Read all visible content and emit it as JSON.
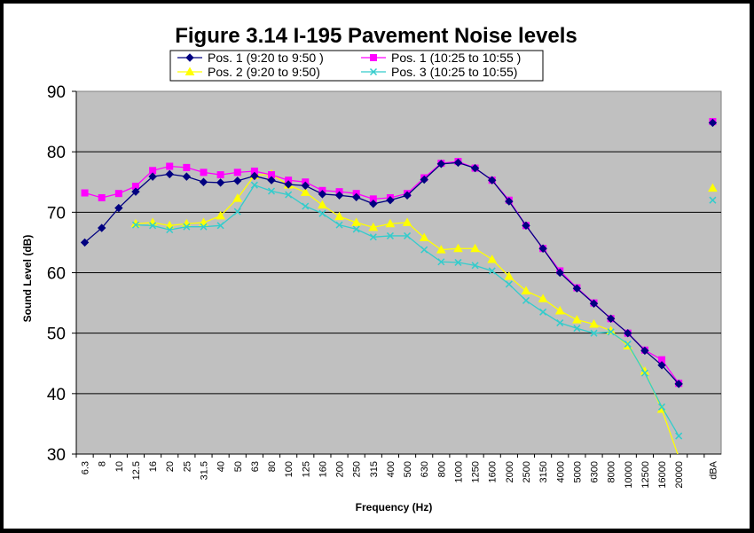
{
  "chart_data": {
    "type": "line",
    "title": "Figure 3.14 I-195 Pavement Noise levels",
    "xlabel": "Frequency (Hz)",
    "ylabel": "Sound Level (dB)",
    "ylim": [
      30,
      90
    ],
    "yticks": [
      "30",
      "40",
      "50",
      "60",
      "70",
      "80",
      "90"
    ],
    "grid": "horizontal",
    "legend_position": "top-center",
    "categories": [
      "6.3",
      "8",
      "10",
      "12.5",
      "16",
      "20",
      "25",
      "31.5",
      "40",
      "50",
      "63",
      "80",
      "100",
      "125",
      "160",
      "200",
      "250",
      "315",
      "400",
      "500",
      "630",
      "800",
      "1000",
      "1250",
      "1600",
      "2000",
      "2500",
      "3150",
      "4000",
      "5000",
      "6300",
      "8000",
      "10000",
      "12500",
      "16000",
      "20000",
      "",
      "dBA"
    ],
    "series": [
      {
        "name": "Pos. 1 (9:20 to 9:50 )",
        "color": "#000080",
        "marker": "diamond",
        "values": [
          65.0,
          67.4,
          70.7,
          73.4,
          75.9,
          76.3,
          75.9,
          75.0,
          74.9,
          75.2,
          76.0,
          75.3,
          74.6,
          74.4,
          73.0,
          72.8,
          72.5,
          71.4,
          72.0,
          72.8,
          75.4,
          78.0,
          78.2,
          77.3,
          75.3,
          71.8,
          67.8,
          64.0,
          60.0,
          57.4,
          54.9,
          52.4,
          50.0,
          47.1,
          44.7,
          41.6,
          null,
          84.8
        ]
      },
      {
        "name": "Pos. 1 (10:25 to 10:55 )",
        "color": "#ff00ff",
        "marker": "square",
        "values": [
          73.2,
          72.4,
          73.1,
          74.3,
          76.9,
          77.6,
          77.4,
          76.6,
          76.2,
          76.6,
          76.8,
          76.2,
          75.3,
          75.0,
          73.6,
          73.4,
          73.1,
          72.2,
          72.4,
          73.1,
          75.7,
          78.1,
          78.4,
          77.3,
          75.3,
          72.0,
          67.8,
          64.0,
          60.3,
          57.5,
          55.0,
          52.4,
          50.0,
          47.2,
          45.6,
          41.7,
          null,
          85.0
        ]
      },
      {
        "name": "Pos. 2 (9:20 to 9:50)",
        "color": "#ffff00",
        "marker": "triangle",
        "values": [
          null,
          null,
          null,
          68.1,
          68.3,
          67.8,
          68.1,
          68.3,
          69.4,
          72.3,
          76.1,
          76.3,
          74.5,
          73.3,
          71.2,
          69.3,
          68.3,
          67.5,
          68.1,
          68.3,
          65.8,
          63.8,
          64.0,
          64.0,
          62.2,
          59.4,
          57.0,
          55.7,
          53.7,
          52.2,
          51.5,
          50.4,
          47.9,
          43.7,
          37.4,
          29.5,
          null,
          74.0
        ]
      },
      {
        "name": "Pos. 3 (10:25 to 10:55)",
        "color": "#33cccc",
        "marker": "x",
        "values": [
          null,
          null,
          null,
          67.9,
          67.8,
          67.1,
          67.6,
          67.6,
          67.8,
          70.1,
          74.5,
          73.5,
          72.9,
          71.0,
          69.8,
          67.9,
          67.2,
          65.9,
          66.1,
          66.1,
          63.8,
          61.8,
          61.7,
          61.2,
          60.3,
          58.1,
          55.4,
          53.5,
          51.7,
          50.8,
          50.0,
          50.2,
          48.2,
          43.4,
          37.8,
          33.0,
          null,
          72.0
        ]
      }
    ]
  }
}
